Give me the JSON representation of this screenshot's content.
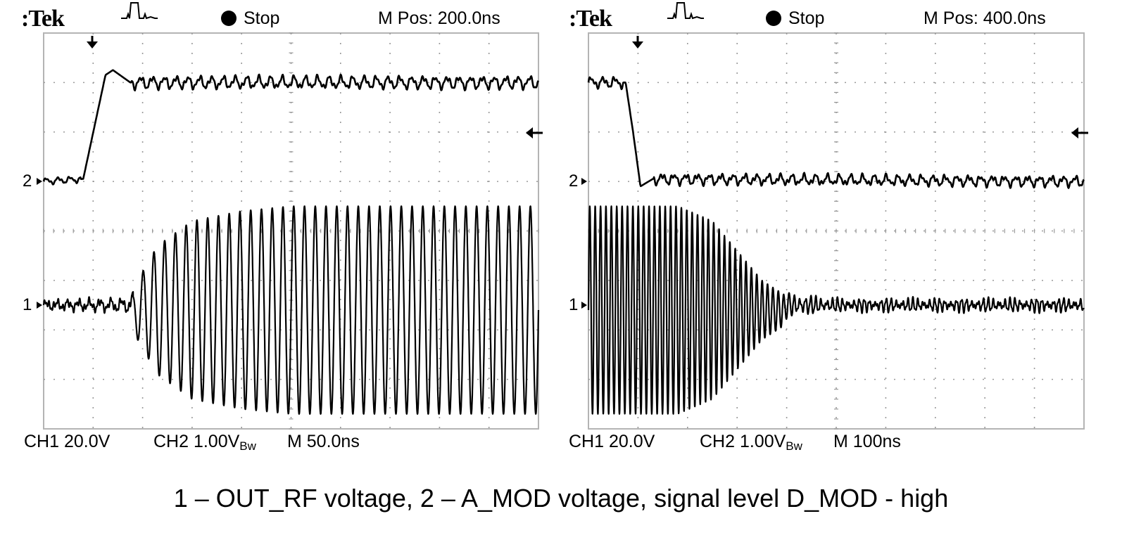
{
  "caption": "1 – OUT_RF voltage, 2 – A_MOD voltage, signal level D_MOD - high",
  "colors": {
    "trace": "#000000",
    "grid": "#9a9a9a",
    "frame": "#b4b4b4",
    "background": "#ffffff"
  },
  "scopes": [
    {
      "brand": "Tek",
      "trigger_icon": "pulse-trigger-icon",
      "run_state": "Stop",
      "m_pos": "M Pos: 200.0ns",
      "channel_markers": [
        "2",
        "1"
      ],
      "ch1_scale": "CH1  20.0V",
      "ch2_scale": "CH2  1.00V",
      "bw_label": "Bw",
      "timebase": "M 50.0ns"
    },
    {
      "brand": "Tek",
      "trigger_icon": "pulse-trigger-icon",
      "run_state": "Stop",
      "m_pos": "M Pos: 400.0ns",
      "channel_markers": [
        "2",
        "1"
      ],
      "ch1_scale": "CH1  20.0V",
      "ch2_scale": "CH2  1.00V",
      "bw_label": "Bw",
      "timebase": "M 100ns"
    }
  ],
  "chart_data": [
    {
      "type": "line",
      "title": "M Pos: 200.0ns",
      "xlabel": "M 50.0ns",
      "ylabel": "",
      "grid": true,
      "x_divisions": 10,
      "y_divisions": 8,
      "series": [
        {
          "name": "2",
          "description": "A_MOD voltage",
          "baseline_div": 0,
          "points_div": [
            [
              0,
              0.0
            ],
            [
              0.8,
              0.05
            ],
            [
              1.25,
              2.15
            ],
            [
              1.4,
              2.25
            ],
            [
              1.75,
              2.0
            ],
            [
              10,
              2.0
            ]
          ],
          "ripple_div": 0.1
        },
        {
          "name": "1",
          "description": "OUT_RF voltage",
          "baseline_div": 0,
          "envelope_div": [
            [
              0,
              0.05
            ],
            [
              1.75,
              0.1
            ],
            [
              1.9,
              0.6
            ],
            [
              2.3,
              1.3
            ],
            [
              3,
              1.8
            ],
            [
              4,
              2.0
            ],
            [
              5,
              2.1
            ],
            [
              10,
              2.1
            ]
          ],
          "envelope_offset_div": -0.1
        }
      ]
    },
    {
      "type": "line",
      "title": "M Pos: 400.0ns",
      "xlabel": "M 100ns",
      "ylabel": "",
      "grid": true,
      "x_divisions": 10,
      "y_divisions": 8,
      "series": [
        {
          "name": "2",
          "description": "A_MOD voltage",
          "baseline_div": 0,
          "points_div": [
            [
              0,
              2.0
            ],
            [
              0.75,
              2.0
            ],
            [
              0.9,
              1.0
            ],
            [
              1.05,
              -0.1
            ],
            [
              1.3,
              0.05
            ],
            [
              10,
              0.0
            ]
          ],
          "ripple_div": 0.08
        },
        {
          "name": "1",
          "description": "OUT_RF voltage",
          "baseline_div": 0,
          "envelope_div": [
            [
              0,
              2.1
            ],
            [
              1.8,
              2.1
            ],
            [
              2.5,
              1.8
            ],
            [
              3,
              1.2
            ],
            [
              3.5,
              0.6
            ],
            [
              4.2,
              0.15
            ],
            [
              5,
              0.08
            ],
            [
              10,
              0.08
            ]
          ],
          "envelope_offset_div": -0.1
        }
      ]
    }
  ]
}
